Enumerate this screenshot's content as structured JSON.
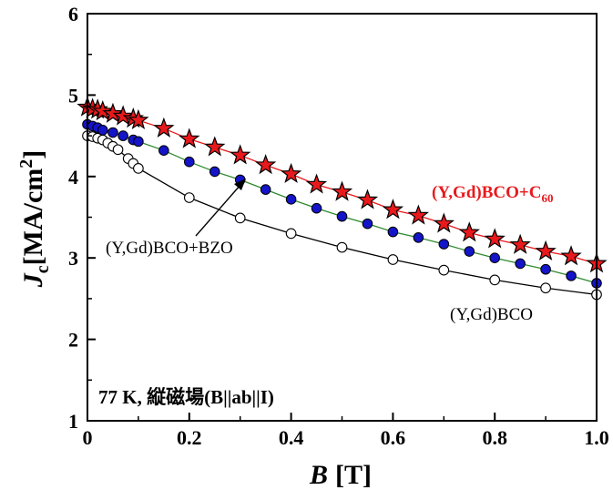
{
  "chart_data": {
    "type": "line",
    "xlabel_main": "B",
    "xlabel_unit": "[T]",
    "ylabel_main": "J",
    "ylabel_sub": "c",
    "ylabel_unit": "[MA/cm",
    "ylabel_sup": "2",
    "ylabel_close": "]",
    "xlim": [
      0,
      1.0
    ],
    "ylim": [
      1,
      6
    ],
    "xticks": [
      "0",
      "0.2",
      "0.4",
      "0.6",
      "0.8",
      "1.0"
    ],
    "yticks": [
      "1",
      "2",
      "3",
      "4",
      "5",
      "6"
    ],
    "condition_label": "77 K, 縦磁場(B||ab||I)",
    "grid": false,
    "series": [
      {
        "name": "(Y,Gd)BCO+C",
        "name_sub": "60",
        "marker": "star",
        "marker_color": "#e8191c",
        "line_color": "#e8191c",
        "x": [
          0,
          0.01,
          0.02,
          0.03,
          0.05,
          0.07,
          0.09,
          0.1,
          0.15,
          0.2,
          0.25,
          0.3,
          0.35,
          0.4,
          0.45,
          0.5,
          0.55,
          0.6,
          0.65,
          0.7,
          0.75,
          0.8,
          0.85,
          0.9,
          0.95,
          1.0
        ],
        "y": [
          4.85,
          4.83,
          4.82,
          4.8,
          4.77,
          4.74,
          4.71,
          4.69,
          4.59,
          4.46,
          4.36,
          4.26,
          4.14,
          4.03,
          3.9,
          3.81,
          3.71,
          3.59,
          3.52,
          3.42,
          3.31,
          3.23,
          3.16,
          3.08,
          3.02,
          2.93
        ]
      },
      {
        "name": "(Y,Gd)BCO+BZO",
        "marker": "circle",
        "marker_color": "#1414c8",
        "line_color": "#2f8a2f",
        "x": [
          0,
          0.01,
          0.02,
          0.03,
          0.05,
          0.07,
          0.09,
          0.1,
          0.15,
          0.2,
          0.25,
          0.3,
          0.35,
          0.4,
          0.45,
          0.5,
          0.55,
          0.6,
          0.65,
          0.7,
          0.75,
          0.8,
          0.85,
          0.9,
          0.95,
          1.0
        ],
        "y": [
          4.64,
          4.62,
          4.6,
          4.57,
          4.54,
          4.5,
          4.45,
          4.43,
          4.32,
          4.18,
          4.06,
          3.96,
          3.84,
          3.72,
          3.61,
          3.51,
          3.42,
          3.32,
          3.25,
          3.17,
          3.08,
          3.0,
          2.93,
          2.86,
          2.78,
          2.69
        ]
      },
      {
        "name": "(Y,Gd)BCO",
        "marker": "open-circle",
        "marker_color": "#ffffff",
        "line_color": "#000000",
        "x": [
          0,
          0.01,
          0.02,
          0.03,
          0.04,
          0.05,
          0.06,
          0.08,
          0.09,
          0.1,
          0.2,
          0.3,
          0.4,
          0.5,
          0.6,
          0.7,
          0.8,
          0.9,
          1.0
        ],
        "y": [
          4.5,
          4.49,
          4.47,
          4.45,
          4.41,
          4.37,
          4.33,
          4.22,
          4.16,
          4.1,
          3.74,
          3.49,
          3.3,
          3.13,
          2.98,
          2.85,
          2.73,
          2.63,
          2.55
        ]
      }
    ]
  }
}
